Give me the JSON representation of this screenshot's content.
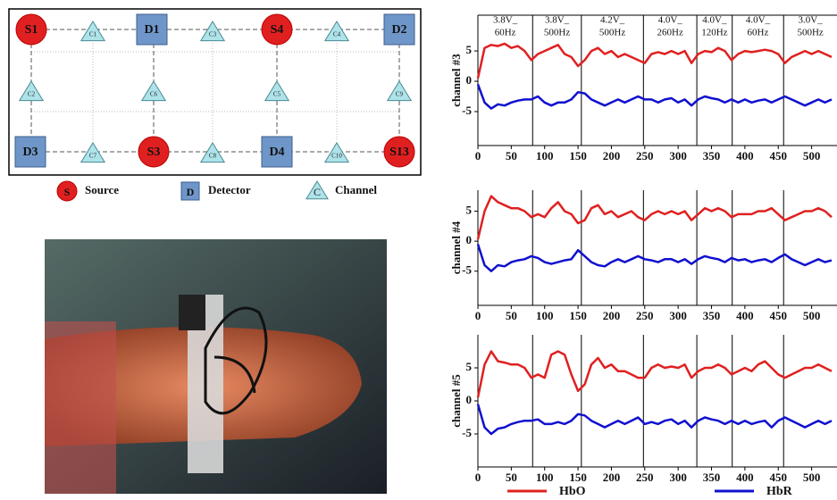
{
  "diagram": {
    "nodes": [
      "S1",
      "C1",
      "D1",
      "C3",
      "S4",
      "C4",
      "D2",
      "C2",
      "C6",
      "C5",
      "C9",
      "D3",
      "C7",
      "S3",
      "C8",
      "D4",
      "C10",
      "S13"
    ],
    "legend": [
      {
        "symbol": "S",
        "label": "Source"
      },
      {
        "symbol": "D",
        "label": "Detector"
      },
      {
        "symbol": "C",
        "label": "Channel"
      }
    ]
  },
  "chart_data": [
    {
      "type": "line",
      "y_label": "channel #3",
      "annotations": [
        {
          "line1": "3.8V_",
          "line2": "60Hz"
        },
        {
          "line1": "3.8V_",
          "line2": "500Hz"
        },
        {
          "line1": "4.2V_",
          "line2": "500Hz"
        },
        {
          "line1": "4.0V_",
          "line2": "260Hz"
        },
        {
          "line1": "4.0V_",
          "line2": "120Hz"
        },
        {
          "line1": "4.0V_",
          "line2": "60Hz"
        },
        {
          "line1": "3.0V_",
          "line2": "500Hz"
        }
      ],
      "boundaries": [
        82,
        155,
        248,
        328,
        381,
        458
      ],
      "x": [
        0,
        10,
        20,
        30,
        40,
        50,
        60,
        70,
        80,
        90,
        100,
        110,
        120,
        130,
        140,
        150,
        160,
        170,
        180,
        190,
        200,
        210,
        220,
        230,
        240,
        250,
        260,
        270,
        280,
        290,
        300,
        310,
        320,
        330,
        340,
        350,
        360,
        370,
        380,
        390,
        400,
        410,
        420,
        430,
        440,
        450,
        460,
        470,
        480,
        490,
        500,
        510,
        520,
        530
      ],
      "series": [
        {
          "name": "HbO",
          "color": "#e02020",
          "values": [
            0.5,
            5.5,
            6,
            5.8,
            6.2,
            5.5,
            5.8,
            5,
            3.5,
            4.5,
            5,
            5.5,
            6,
            4.5,
            4,
            2.5,
            3.5,
            5,
            5.5,
            4.5,
            5,
            4,
            4.5,
            4,
            3.5,
            3,
            4.5,
            4.8,
            4.5,
            5,
            4.5,
            5,
            3,
            4.5,
            5,
            4.8,
            5.5,
            5,
            3.5,
            4.5,
            5,
            4.8,
            5,
            5.2,
            5,
            4.5,
            3,
            4,
            4.5,
            5,
            4.5,
            5,
            4.5,
            4
          ]
        },
        {
          "name": "HbR",
          "color": "#1010d0",
          "values": [
            -0.5,
            -3.5,
            -4.5,
            -3.8,
            -4,
            -3.5,
            -3.2,
            -3,
            -3,
            -2.5,
            -3.5,
            -4,
            -3.5,
            -3.5,
            -3,
            -1.8,
            -2,
            -3,
            -3.5,
            -4,
            -3.5,
            -3,
            -3.5,
            -3,
            -2.5,
            -3,
            -3,
            -3.5,
            -3,
            -2.8,
            -3.5,
            -3,
            -4,
            -3,
            -2.5,
            -2.8,
            -3,
            -3.5,
            -3,
            -3.5,
            -3,
            -3.5,
            -3.2,
            -3,
            -3.5,
            -3,
            -2.5,
            -3,
            -3.5,
            -4,
            -3.5,
            -3,
            -3.5,
            -3
          ]
        }
      ],
      "xlim": [
        0,
        538
      ],
      "ylim": [
        -10.6,
        10.9
      ],
      "xticks": [
        0,
        50,
        100,
        150,
        200,
        250,
        300,
        350,
        400,
        450,
        500
      ],
      "yticks": [
        -5,
        0,
        5
      ]
    },
    {
      "type": "line",
      "y_label": "channel #4",
      "boundaries": [
        82,
        155,
        248,
        328,
        381,
        458
      ],
      "x": [
        0,
        10,
        20,
        30,
        40,
        50,
        60,
        70,
        80,
        90,
        100,
        110,
        120,
        130,
        140,
        150,
        160,
        170,
        180,
        190,
        200,
        210,
        220,
        230,
        240,
        250,
        260,
        270,
        280,
        290,
        300,
        310,
        320,
        330,
        340,
        350,
        360,
        370,
        380,
        390,
        400,
        410,
        420,
        430,
        440,
        450,
        460,
        470,
        480,
        490,
        500,
        510,
        520,
        530
      ],
      "series": [
        {
          "name": "HbO",
          "color": "#e02020",
          "values": [
            0.3,
            5,
            7.5,
            6.5,
            6,
            5.5,
            5.5,
            5,
            4,
            4.5,
            4,
            5.5,
            6.5,
            5,
            4.5,
            3,
            3.5,
            5.5,
            6,
            4.5,
            5,
            4,
            4.5,
            5,
            4,
            3.5,
            4.5,
            5,
            4.5,
            5,
            4.5,
            5,
            3.5,
            4.5,
            5.5,
            5,
            5.5,
            5,
            4,
            4.5,
            4.5,
            4.5,
            5,
            5,
            5.5,
            4.5,
            3.5,
            4,
            4.5,
            5,
            5,
            5.5,
            5,
            4
          ]
        },
        {
          "name": "HbR",
          "color": "#1010d0",
          "values": [
            -0.5,
            -4,
            -5,
            -4,
            -4.2,
            -3.5,
            -3.2,
            -3,
            -2.5,
            -2.8,
            -3.5,
            -3.8,
            -3.5,
            -3.2,
            -3,
            -1.5,
            -2.5,
            -3.5,
            -4,
            -4.2,
            -3.5,
            -3,
            -3.5,
            -3,
            -2.5,
            -3,
            -3.2,
            -3.5,
            -3,
            -3,
            -3.5,
            -3,
            -3.8,
            -3,
            -2.5,
            -2.8,
            -3,
            -3.5,
            -2.8,
            -3.2,
            -3,
            -3.5,
            -3.2,
            -3,
            -3.5,
            -2.8,
            -2.2,
            -3,
            -3.5,
            -4,
            -3.5,
            -3,
            -3.5,
            -3.2
          ]
        }
      ],
      "xlim": [
        0,
        538
      ],
      "ylim": [
        -10.7,
        8.5
      ],
      "xticks": [
        0,
        50,
        100,
        150,
        200,
        250,
        300,
        350,
        400,
        450,
        500
      ],
      "yticks": [
        -5,
        0,
        5
      ]
    },
    {
      "type": "line",
      "y_label": "channel #5",
      "boundaries": [
        82,
        155,
        248,
        328,
        381,
        458
      ],
      "x": [
        0,
        10,
        20,
        30,
        40,
        50,
        60,
        70,
        80,
        90,
        100,
        110,
        120,
        130,
        140,
        150,
        160,
        170,
        180,
        190,
        200,
        210,
        220,
        230,
        240,
        250,
        260,
        270,
        280,
        290,
        300,
        310,
        320,
        330,
        340,
        350,
        360,
        370,
        380,
        390,
        400,
        410,
        420,
        430,
        440,
        450,
        460,
        470,
        480,
        490,
        500,
        510,
        520,
        530
      ],
      "series": [
        {
          "name": "HbO",
          "color": "#e02020",
          "values": [
            0.5,
            5.5,
            7.5,
            6,
            5.8,
            5.5,
            5.5,
            5,
            3.5,
            4,
            3.5,
            7,
            7.5,
            7,
            4,
            1.5,
            2.5,
            5.5,
            6.5,
            5,
            5.5,
            4.5,
            4.5,
            4,
            3.5,
            3.5,
            5,
            5.5,
            5,
            5.2,
            5,
            5.5,
            3.5,
            4.5,
            5,
            5,
            5.5,
            5,
            4,
            4.5,
            5,
            4.5,
            5.5,
            6,
            5,
            4,
            3.5,
            4,
            4.5,
            5,
            5,
            5.5,
            5,
            4.5
          ]
        },
        {
          "name": "HbR",
          "color": "#1010d0",
          "values": [
            -0.5,
            -4,
            -5,
            -4.2,
            -4,
            -3.5,
            -3.2,
            -3,
            -3,
            -2.8,
            -3.5,
            -3.5,
            -3.2,
            -3.5,
            -3,
            -2,
            -2.2,
            -3,
            -3.5,
            -4,
            -3.5,
            -3,
            -3.5,
            -3,
            -2.5,
            -3.5,
            -3.2,
            -3.5,
            -3,
            -2.8,
            -3.5,
            -3,
            -4,
            -3,
            -2.5,
            -2.8,
            -3,
            -3.5,
            -3,
            -3.5,
            -3,
            -3.5,
            -3.2,
            -3,
            -4,
            -3,
            -2.5,
            -3,
            -3.5,
            -4,
            -3.5,
            -3,
            -3.5,
            -3
          ]
        }
      ],
      "xlim": [
        0,
        538
      ],
      "ylim": [
        -10,
        10
      ],
      "xticks": [
        0,
        50,
        100,
        150,
        200,
        250,
        300,
        350,
        400,
        450,
        500
      ],
      "yticks": [
        -5,
        0,
        5
      ]
    }
  ]
}
